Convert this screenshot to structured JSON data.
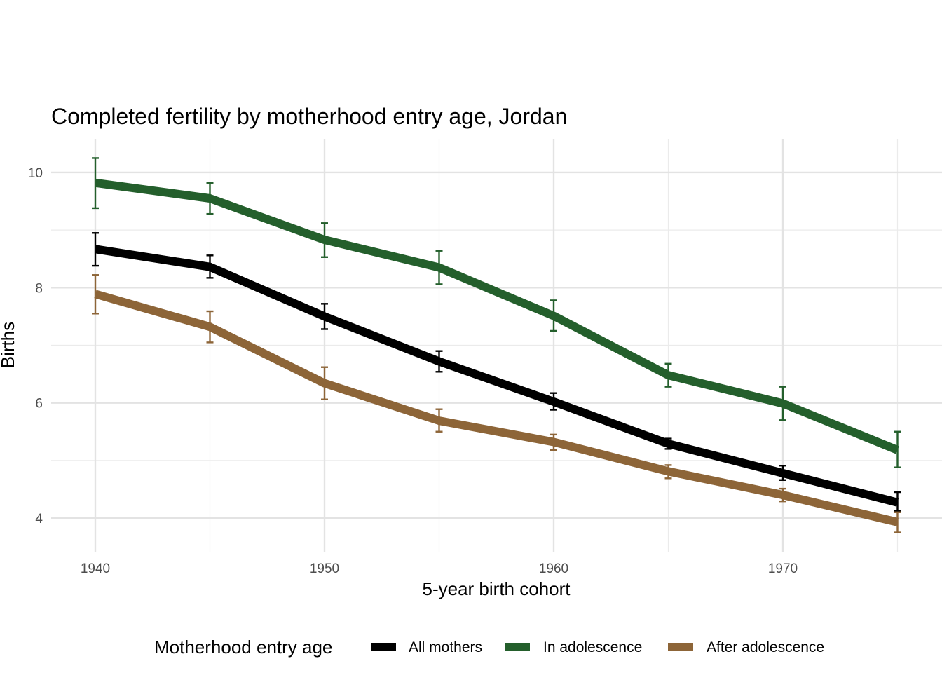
{
  "chart_data": {
    "type": "line",
    "title": "Completed fertility by motherhood entry age,  Jordan",
    "xlabel": "5-year birth cohort",
    "ylabel": "Births",
    "x": [
      1940,
      1945,
      1950,
      1955,
      1960,
      1965,
      1970,
      1975
    ],
    "xlim": [
      1938,
      1976.5
    ],
    "ylim": [
      3.45,
      10.55
    ],
    "x_ticks": [
      1940,
      1950,
      1960,
      1970
    ],
    "x_tick_labels": [
      "1940",
      "1950",
      "1960",
      "1970"
    ],
    "y_ticks": [
      4,
      6,
      8,
      10
    ],
    "y_tick_labels": [
      "4",
      "6",
      "8",
      "10"
    ],
    "grid": true,
    "legend": {
      "title": "Motherhood entry age",
      "position": "bottom"
    },
    "series": [
      {
        "name": "All mothers",
        "color": "#000000",
        "values": [
          8.67,
          8.36,
          7.5,
          6.72,
          6.02,
          5.29,
          4.78,
          4.27
        ],
        "lower": [
          8.38,
          8.17,
          7.28,
          6.54,
          5.88,
          5.2,
          4.66,
          4.12
        ],
        "upper": [
          8.95,
          8.56,
          7.72,
          6.9,
          6.17,
          5.38,
          4.91,
          4.45
        ]
      },
      {
        "name": "In adolescence",
        "color": "#245f2c",
        "values": [
          9.82,
          9.55,
          8.83,
          8.35,
          7.51,
          6.48,
          5.99,
          5.18
        ],
        "lower": [
          9.38,
          9.28,
          8.53,
          8.06,
          7.25,
          6.28,
          5.7,
          4.88
        ],
        "upper": [
          10.25,
          9.82,
          9.12,
          8.64,
          7.78,
          6.68,
          6.28,
          5.5
        ]
      },
      {
        "name": "After adolescence",
        "color": "#8d6538",
        "values": [
          7.89,
          7.32,
          6.34,
          5.69,
          5.32,
          4.81,
          4.4,
          3.93
        ],
        "lower": [
          7.55,
          7.05,
          6.06,
          5.5,
          5.18,
          4.69,
          4.29,
          3.75
        ],
        "upper": [
          8.22,
          7.59,
          6.62,
          5.89,
          5.45,
          4.92,
          4.51,
          4.1
        ]
      }
    ]
  }
}
